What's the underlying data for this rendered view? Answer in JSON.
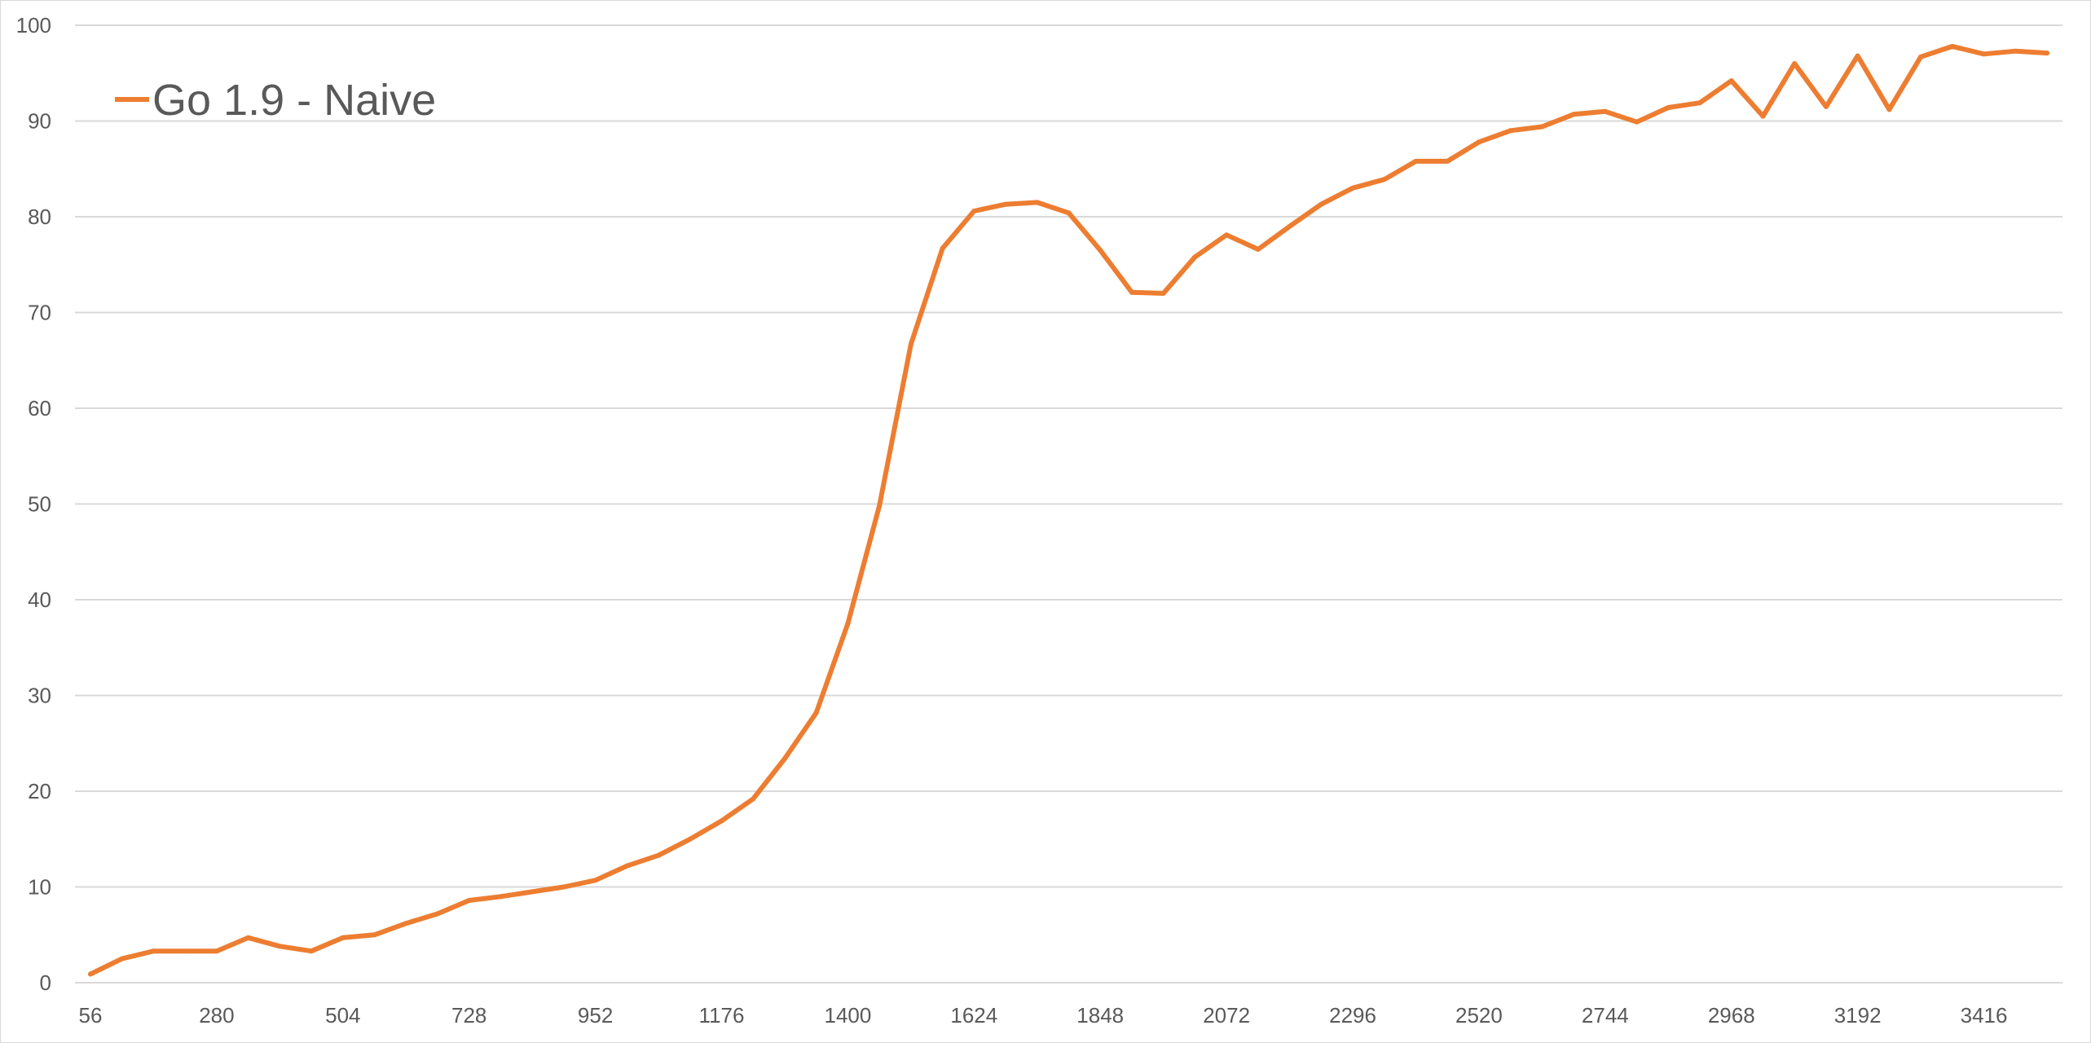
{
  "chart_data": {
    "type": "line",
    "title": "",
    "xlabel": "",
    "ylabel": "",
    "ylim": [
      0,
      100
    ],
    "yticks": [
      0,
      10,
      20,
      30,
      40,
      50,
      60,
      70,
      80,
      90,
      100
    ],
    "xtick_labels": [
      "56",
      "280",
      "504",
      "728",
      "952",
      "1176",
      "1400",
      "1624",
      "1848",
      "2072",
      "2296",
      "2520",
      "2744",
      "2968",
      "3192",
      "3416"
    ],
    "x_step": 56,
    "grid": "horizontal",
    "legend": {
      "position": "top-left"
    },
    "series": [
      {
        "name": "Go 1.9 - Naive",
        "color": "#ED7D31",
        "x": [
          56,
          112,
          168,
          224,
          280,
          336,
          392,
          448,
          504,
          560,
          616,
          672,
          728,
          784,
          840,
          896,
          952,
          1008,
          1064,
          1120,
          1176,
          1232,
          1288,
          1344,
          1400,
          1456,
          1512,
          1568,
          1624,
          1680,
          1736,
          1792,
          1848,
          1904,
          1960,
          2016,
          2072,
          2128,
          2184,
          2240,
          2296,
          2352,
          2408,
          2464,
          2520,
          2576,
          2632,
          2688,
          2744,
          2800,
          2856,
          2912,
          2968,
          3024,
          3080,
          3136,
          3192,
          3248,
          3304,
          3360,
          3416,
          3472,
          3528
        ],
        "values": [
          0.9,
          2.5,
          3.3,
          3.3,
          3.3,
          4.7,
          3.8,
          3.3,
          4.7,
          5.0,
          6.2,
          7.2,
          8.6,
          9.0,
          9.5,
          10.0,
          10.7,
          12.2,
          13.3,
          15.0,
          16.9,
          19.2,
          23.4,
          28.2,
          37.5,
          49.8,
          66.7,
          76.7,
          80.6,
          81.3,
          81.5,
          80.4,
          76.5,
          72.1,
          72.0,
          75.8,
          78.1,
          76.6,
          79.0,
          81.3,
          83.0,
          83.9,
          85.8,
          85.8,
          87.8,
          89.0,
          89.4,
          90.7,
          91.0,
          89.9,
          91.4,
          91.9,
          94.2,
          90.5,
          96.0,
          91.5,
          96.8,
          91.2,
          96.7,
          97.8,
          97.0,
          97.3,
          97.1
        ]
      }
    ]
  }
}
